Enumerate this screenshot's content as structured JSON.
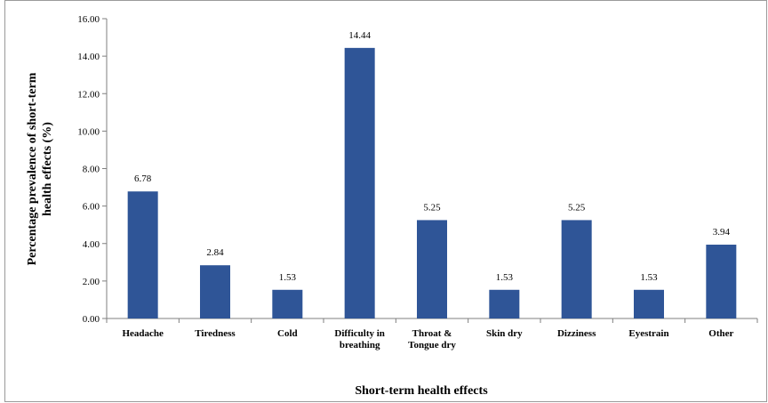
{
  "chart_data": {
    "type": "bar",
    "categories": [
      "Headache",
      "Tiredness",
      "Cold",
      "Difficulty in breathing",
      "Throat & Tongue dry",
      "Skin dry",
      "Dizziness",
      "Eyestrain",
      "Other"
    ],
    "category_lines": [
      [
        "Headache"
      ],
      [
        "Tiredness"
      ],
      [
        "Cold"
      ],
      [
        "Difficulty in",
        "breathing"
      ],
      [
        "Throat &",
        "Tongue dry"
      ],
      [
        "Skin dry"
      ],
      [
        "Dizziness"
      ],
      [
        "Eyestrain"
      ],
      [
        "Other"
      ]
    ],
    "values": [
      6.78,
      2.84,
      1.53,
      14.44,
      5.25,
      1.53,
      5.25,
      1.53,
      3.94
    ],
    "value_labels": [
      "6.78",
      "2.84",
      "1.53",
      "14.44",
      "5.25",
      "1.53",
      "5.25",
      "1.53",
      "3.94"
    ],
    "y_ticks": [
      "0.00",
      "2.00",
      "4.00",
      "6.00",
      "8.00",
      "10.00",
      "12.00",
      "14.00",
      "16.00"
    ],
    "ylim": [
      0,
      16
    ],
    "xlabel": "Short-term health effects",
    "ylabel_lines": [
      "Percentage prevalence of short-term",
      "health effects (%)"
    ],
    "bar_color": "#2f5597",
    "grid": false,
    "legend": "none"
  }
}
